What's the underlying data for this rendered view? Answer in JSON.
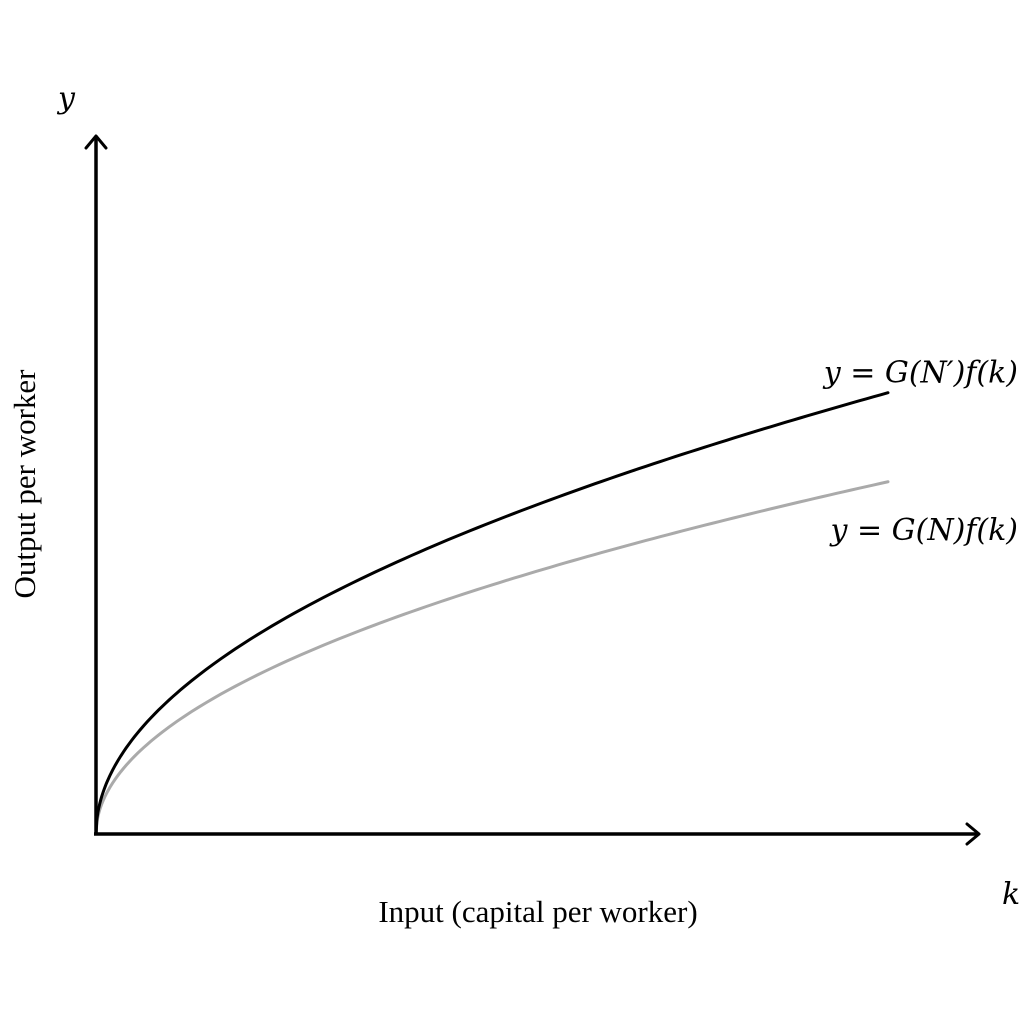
{
  "chart_data": {
    "type": "line",
    "title": "",
    "xlabel": "Input (capital per worker)",
    "ylabel": "Output per worker",
    "x_axis_symbol": "k",
    "y_axis_symbol": "y",
    "xlim": [
      0,
      1
    ],
    "ylim": [
      0,
      1
    ],
    "grid": false,
    "ticks": false,
    "series": [
      {
        "name": "y = G(N′)f(k)",
        "color": "#000000",
        "label_position": "above-end",
        "x": [
          0,
          0.0125,
          0.05,
          0.1,
          0.2,
          0.3,
          0.4,
          0.5,
          0.6,
          0.7,
          0.8,
          0.9
        ],
        "y": [
          0,
          0.0747,
          0.1494,
          0.2113,
          0.2989,
          0.366,
          0.4227,
          0.4725,
          0.5177,
          0.5591,
          0.5977,
          0.634
        ]
      },
      {
        "name": "y = G(N)f(k)",
        "color": "#aaaaaa",
        "label_position": "below-end",
        "x": [
          0,
          0.0125,
          0.05,
          0.1,
          0.2,
          0.3,
          0.4,
          0.5,
          0.6,
          0.7,
          0.8,
          0.9
        ],
        "y": [
          0,
          0.0596,
          0.1193,
          0.1687,
          0.2386,
          0.2922,
          0.3374,
          0.3772,
          0.4132,
          0.4463,
          0.4772,
          0.5061
        ]
      }
    ]
  }
}
